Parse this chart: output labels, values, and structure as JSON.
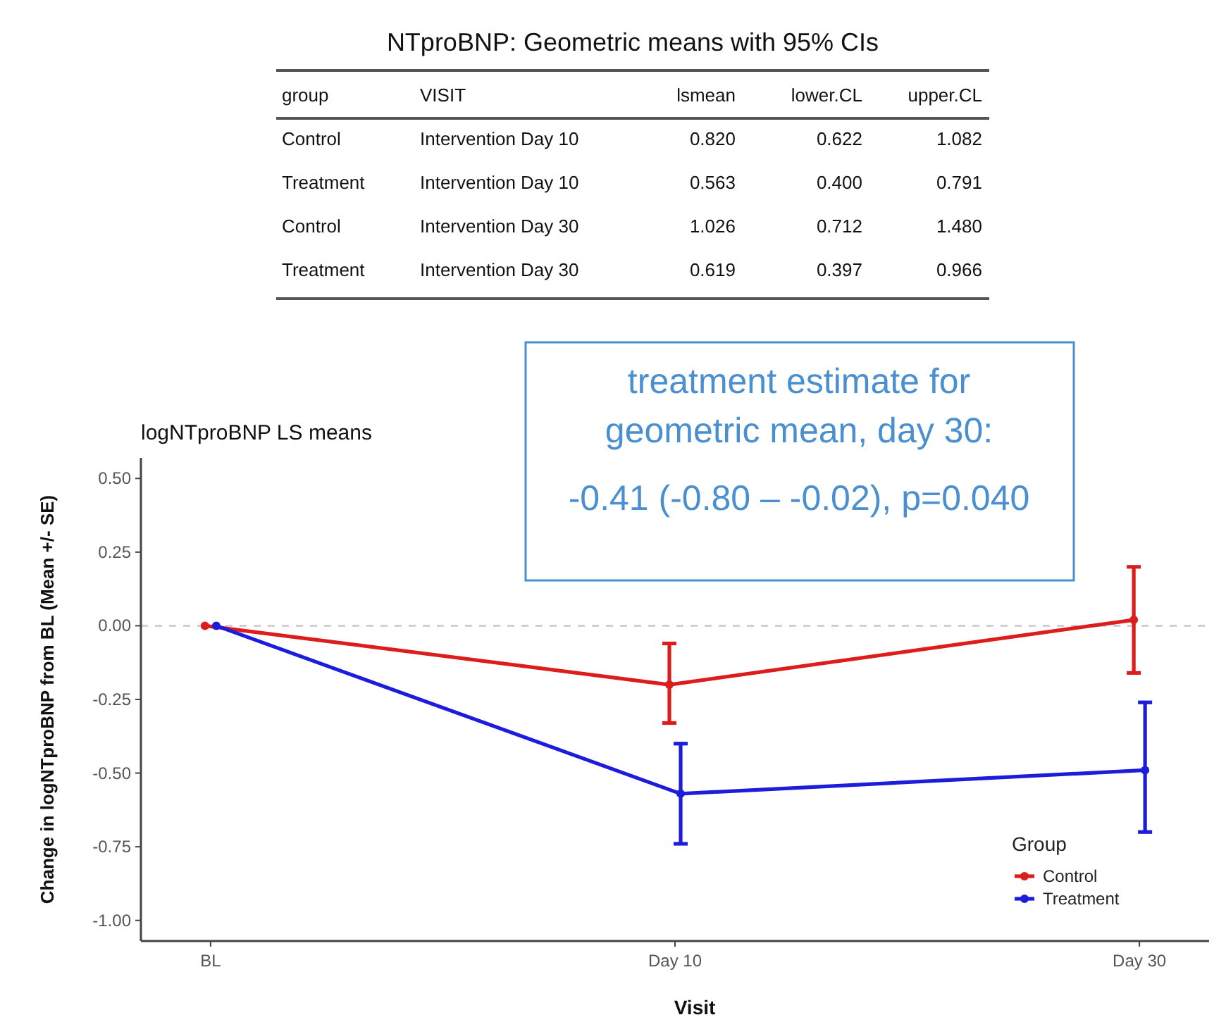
{
  "chart_data": [
    {
      "type": "other",
      "title": "NTproBNP: Geometric means with 95% CIs",
      "annotations": [
        "group",
        "VISIT",
        "lsmean",
        "lower.CL",
        "upper.CL",
        "Control",
        "Intervention Day 10",
        "0.820",
        "0.622",
        "1.082",
        "Treatment",
        "Intervention Day 10",
        "0.563",
        "0.400",
        "0.791",
        "Control",
        "Intervention Day 30",
        "1.026",
        "0.712",
        "1.480",
        "Treatment",
        "Intervention Day 30",
        "0.619",
        "0.397",
        "0.966"
      ]
    },
    {
      "type": "line",
      "title": "logNTproBNP LS means",
      "xlabel": "Visit",
      "ylabel": "Change in logNTproBNP from BL (Mean +/- SE)",
      "categories": [
        "BL",
        "Day 10",
        "Day 30"
      ],
      "ylim": [
        -1.07,
        0.57
      ],
      "yticks": [
        {
          "value": 0.5,
          "label": "0.50"
        },
        {
          "value": 0.25,
          "label": "0.25"
        },
        {
          "value": 0,
          "label": "0.00"
        },
        {
          "value": -0.25,
          "label": "-0.25"
        },
        {
          "value": -0.5,
          "label": "-0.50"
        },
        {
          "value": -0.75,
          "label": "-0.75"
        },
        {
          "value": -1,
          "label": "-1.00"
        }
      ],
      "grid": false,
      "marker": "circle",
      "legend": "bottom right",
      "legend_title": "Group",
      "series": [
        {
          "name": "Control",
          "color": "#dd1c1c",
          "values": [
            0,
            -0.2,
            0.02
          ],
          "errors": [
            null,
            [
              -0.33,
              -0.06
            ],
            [
              -0.16,
              0.2
            ]
          ]
        },
        {
          "name": "Treatment",
          "color": "#1c1cdd",
          "values": [
            0,
            -0.57,
            -0.49
          ],
          "errors": [
            null,
            [
              -0.74,
              -0.4
            ],
            [
              -0.7,
              -0.26
            ]
          ]
        }
      ],
      "ref_lines": [
        {
          "axis": "y",
          "value": 0,
          "color": "#c8c8c8",
          "line_style": "dashed"
        }
      ],
      "annotations": [
        "treatment estimate for",
        "geometric mean, day 30:",
        "-0.41 (-0.80 – -0.02),  p=0.040"
      ]
    }
  ]
}
